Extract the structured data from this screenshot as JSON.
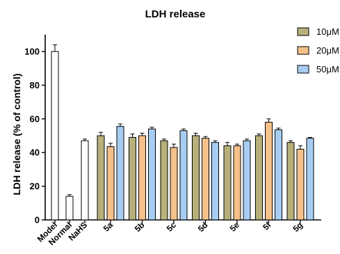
{
  "chart_data": {
    "type": "bar",
    "title": "LDH release",
    "ylabel": "LDH release (% of control)",
    "xlabel": "",
    "ylim": [
      0,
      110
    ],
    "yticks": [
      0,
      20,
      40,
      60,
      80,
      100
    ],
    "grid": false,
    "legend_position": "top-right",
    "controls": {
      "categories": [
        "Model",
        "Normal",
        "NaHS"
      ],
      "values": [
        100,
        14,
        47
      ],
      "errors": [
        4,
        1,
        1
      ],
      "color": "#ffffff"
    },
    "categories": [
      "5a",
      "5b",
      "5c",
      "5d",
      "5e",
      "5f",
      "5g"
    ],
    "series": [
      {
        "name": "10μM",
        "color": "#b7b07a",
        "values": [
          50,
          49,
          47,
          50,
          44,
          50,
          46
        ],
        "errors": [
          2,
          2,
          1,
          1.5,
          2,
          1,
          1
        ]
      },
      {
        "name": "20μM",
        "color": "#f5c18a",
        "values": [
          43.5,
          50,
          43,
          48.5,
          44,
          58,
          42
        ],
        "errors": [
          2,
          1.5,
          2,
          1,
          1,
          2,
          2
        ]
      },
      {
        "name": "50μM",
        "color": "#a7cdf2",
        "values": [
          55.5,
          54,
          53,
          46,
          47,
          53.5,
          48.5
        ],
        "errors": [
          1.5,
          1,
          1,
          1,
          1,
          1,
          0.5
        ]
      }
    ]
  }
}
